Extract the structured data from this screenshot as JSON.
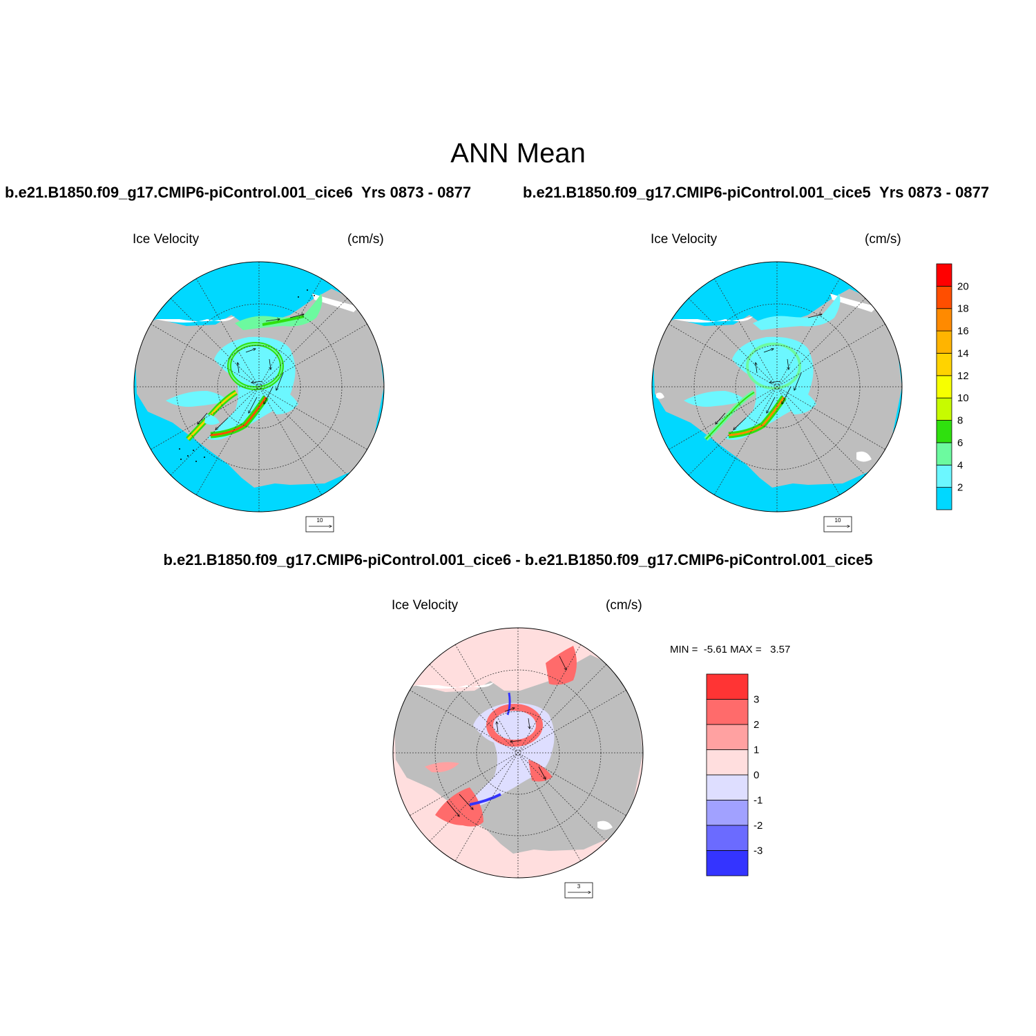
{
  "title": "ANN Mean",
  "panels": {
    "left": {
      "case": "b.e21.B1850.f09_g17.CMIP6-piControl.001_cice6",
      "years": "Yrs 0873 - 0877",
      "variable": "Ice Velocity",
      "units": "(cm/s)",
      "ref_vector": "10"
    },
    "right": {
      "case": "b.e21.B1850.f09_g17.CMIP6-piControl.001_cice5",
      "years": "Yrs 0873 - 0877",
      "variable": "Ice Velocity",
      "units": "(cm/s)",
      "ref_vector": "10"
    },
    "diff": {
      "title": "b.e21.B1850.f09_g17.CMIP6-piControl.001_cice6 - b.e21.B1850.f09_g17.CMIP6-piControl.001_cice5",
      "variable": "Ice Velocity",
      "units": "(cm/s)",
      "min_label": "MIN =",
      "min_value": "-5.61",
      "max_label": "MAX =",
      "max_value": "3.57",
      "ref_vector": "3"
    }
  },
  "colorbars": {
    "speed": {
      "labels": [
        "2",
        "4",
        "6",
        "8",
        "10",
        "12",
        "14",
        "16",
        "18",
        "20"
      ],
      "colors": [
        "#00d8ff",
        "#6cf7ff",
        "#6cfa9f",
        "#2fe00e",
        "#c7fb00",
        "#f7ff00",
        "#ffd300",
        "#ffb400",
        "#ff8a00",
        "#ff4e00",
        "#ff0000"
      ]
    },
    "diff": {
      "labels": [
        "3",
        "2",
        "1",
        "0",
        "-1",
        "-2",
        "-3"
      ],
      "colors": [
        "#ff3434",
        "#ff6b6b",
        "#ffa1a1",
        "#ffdede",
        "#dedeff",
        "#a1a1ff",
        "#6b6bff",
        "#3434ff"
      ]
    }
  },
  "colors": {
    "land": "#bebebe",
    "open_ocean_speed": "#00d8ff",
    "open_ocean_diff": "#ffdede"
  }
}
